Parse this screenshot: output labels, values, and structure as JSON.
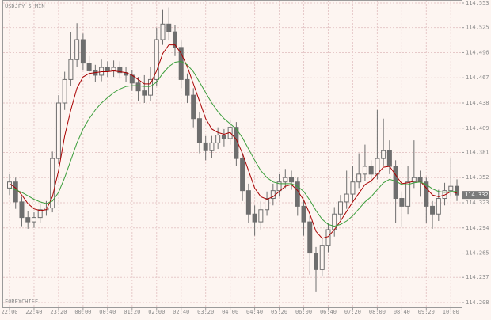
{
  "chart_data": {
    "type": "candlestick",
    "title": "USDJPY 5 MIN",
    "watermark": "FOREXCHIEF",
    "categories": [
      "22:00",
      null,
      null,
      null,
      "22:40",
      null,
      null,
      null,
      "23:20",
      null,
      null,
      null,
      "00:00",
      null,
      null,
      null,
      "00:40",
      null,
      null,
      null,
      "01:20",
      null,
      null,
      null,
      "02:00",
      null,
      null,
      null,
      "02:40",
      null,
      null,
      null,
      "03:20",
      null,
      null,
      null,
      "04:00",
      null,
      null,
      null,
      "04:40",
      null,
      null,
      null,
      "05:20",
      null,
      null,
      null,
      "06:00",
      null,
      null,
      null,
      "06:40",
      null,
      null,
      null,
      "07:20",
      null,
      null,
      null,
      "08:00",
      null,
      null,
      null,
      "08:40",
      null,
      null,
      null,
      "09:20",
      null,
      null,
      null,
      "10:00",
      null
    ],
    "open": [
      114.34,
      114.347,
      114.324,
      114.306,
      114.301,
      114.306,
      114.315,
      114.317,
      114.374,
      114.438,
      114.465,
      114.488,
      114.511,
      114.484,
      114.475,
      114.47,
      114.479,
      114.475,
      114.479,
      114.473,
      114.47,
      114.461,
      114.452,
      114.447,
      114.465,
      114.511,
      114.529,
      114.52,
      114.502,
      114.465,
      114.447,
      114.42,
      114.392,
      114.383,
      114.392,
      114.401,
      114.397,
      114.41,
      114.374,
      114.337,
      114.31,
      114.301,
      114.315,
      114.328,
      114.337,
      114.347,
      114.352,
      114.347,
      114.319,
      114.301,
      114.265,
      114.246,
      114.274,
      114.292,
      114.31,
      114.324,
      114.333,
      114.347,
      114.356,
      114.365,
      114.356,
      114.374,
      114.383,
      114.365,
      114.328,
      114.319,
      114.347,
      114.352,
      114.347,
      114.319,
      114.31,
      114.328,
      114.337,
      114.342
    ],
    "high": [
      114.356,
      114.352,
      114.33,
      114.313,
      114.312,
      114.322,
      114.325,
      114.382,
      114.447,
      114.474,
      114.52,
      114.53,
      114.518,
      114.492,
      114.482,
      114.488,
      114.486,
      114.487,
      114.486,
      114.48,
      114.476,
      114.468,
      114.47,
      114.48,
      114.525,
      114.546,
      114.548,
      114.528,
      114.51,
      114.472,
      114.455,
      114.428,
      114.4,
      114.4,
      114.41,
      114.408,
      114.418,
      114.416,
      114.38,
      114.345,
      114.32,
      114.325,
      114.336,
      114.345,
      114.356,
      114.362,
      114.36,
      114.352,
      114.326,
      114.308,
      114.272,
      114.282,
      114.3,
      114.318,
      114.332,
      114.36,
      114.365,
      114.38,
      114.39,
      114.372,
      114.43,
      114.42,
      114.395,
      114.372,
      114.336,
      114.365,
      114.395,
      114.36,
      114.352,
      114.325,
      114.338,
      114.346,
      114.375,
      114.35
    ],
    "low": [
      114.332,
      114.316,
      114.296,
      114.293,
      114.294,
      114.3,
      114.308,
      114.312,
      114.368,
      114.43,
      114.458,
      114.48,
      114.476,
      114.466,
      114.462,
      114.463,
      114.468,
      114.468,
      114.466,
      114.462,
      114.452,
      114.44,
      114.438,
      114.44,
      114.458,
      114.505,
      114.51,
      114.492,
      114.455,
      114.438,
      114.41,
      114.38,
      114.372,
      114.375,
      114.385,
      114.388,
      114.39,
      114.365,
      114.325,
      114.3,
      114.285,
      114.292,
      114.308,
      114.32,
      114.33,
      114.34,
      114.338,
      114.308,
      114.285,
      114.24,
      114.22,
      114.238,
      114.266,
      114.284,
      114.303,
      114.316,
      114.325,
      114.34,
      114.348,
      114.345,
      114.35,
      114.366,
      114.356,
      114.3,
      114.296,
      114.31,
      114.34,
      114.33,
      114.3,
      114.293,
      114.302,
      114.32,
      114.33,
      114.325
    ],
    "close": [
      114.347,
      114.324,
      114.306,
      114.301,
      114.306,
      114.315,
      114.317,
      114.374,
      114.438,
      114.465,
      114.488,
      114.511,
      114.484,
      114.475,
      114.47,
      114.479,
      114.475,
      114.479,
      114.473,
      114.47,
      114.461,
      114.452,
      114.447,
      114.465,
      114.511,
      114.529,
      114.52,
      114.502,
      114.465,
      114.447,
      114.42,
      114.392,
      114.383,
      114.392,
      114.401,
      114.397,
      114.41,
      114.374,
      114.337,
      114.31,
      114.301,
      114.315,
      114.328,
      114.337,
      114.347,
      114.352,
      114.347,
      114.319,
      114.301,
      114.265,
      114.246,
      114.274,
      114.292,
      114.31,
      114.324,
      114.333,
      114.347,
      114.356,
      114.365,
      114.356,
      114.374,
      114.383,
      114.365,
      114.328,
      114.319,
      114.347,
      114.352,
      114.347,
      114.319,
      114.31,
      114.328,
      114.337,
      114.342,
      114.332
    ],
    "color": "#6e6e6e",
    "lines": [
      {
        "color": "#a80000",
        "values": [
          114.345,
          114.34,
          114.332,
          114.322,
          114.316,
          114.314,
          114.315,
          114.33,
          114.36,
          114.4,
          114.43,
          114.455,
          114.468,
          114.472,
          114.473,
          114.474,
          114.474,
          114.475,
          114.474,
          114.473,
          114.47,
          114.465,
          114.46,
          114.46,
          114.475,
          114.495,
          114.505,
          114.505,
          114.495,
          114.48,
          114.46,
          114.44,
          114.42,
          114.408,
          114.404,
          114.402,
          114.404,
          114.396,
          114.38,
          114.36,
          114.34,
          114.33,
          114.327,
          114.33,
          114.336,
          114.342,
          114.344,
          114.337,
          114.326,
          114.31,
          114.29,
          114.282,
          114.284,
          114.292,
          114.302,
          114.313,
          114.324,
          114.334,
          114.344,
          114.348,
          114.356,
          114.364,
          114.365,
          114.355,
          114.345,
          114.346,
          114.348,
          114.348,
          114.34,
          114.332,
          114.33,
          114.332,
          114.336,
          114.334
        ]
      },
      {
        "color": "#3c9e3c",
        "values": [
          114.34,
          114.338,
          114.335,
          114.331,
          114.327,
          114.324,
          114.322,
          114.325,
          114.335,
          114.352,
          114.372,
          114.392,
          114.408,
          114.42,
          114.43,
          114.438,
          114.444,
          114.45,
          114.454,
          114.457,
          114.458,
          114.458,
          114.457,
          114.457,
          114.462,
          114.472,
          114.48,
          114.485,
          114.486,
          114.482,
          114.474,
          114.462,
          114.45,
          114.438,
          114.428,
          114.42,
          114.414,
          114.408,
          114.398,
          114.385,
          114.372,
          114.36,
          114.352,
          114.347,
          114.345,
          114.345,
          114.345,
          114.342,
          114.336,
          114.326,
          114.314,
          114.304,
          114.298,
          114.296,
          114.298,
          114.302,
          114.308,
          114.316,
          114.324,
          114.33,
          114.338,
          114.346,
          114.35,
          114.348,
          114.344,
          114.344,
          114.346,
          114.347,
          114.344,
          114.339,
          114.336,
          114.335,
          114.336,
          114.336
        ]
      }
    ],
    "ylim": [
      114.208,
      114.553
    ],
    "yticks": [
      114.553,
      114.525,
      114.496,
      114.467,
      114.438,
      114.409,
      114.381,
      114.352,
      114.323,
      114.294,
      114.265,
      114.237,
      114.208
    ],
    "grid": true
  }
}
